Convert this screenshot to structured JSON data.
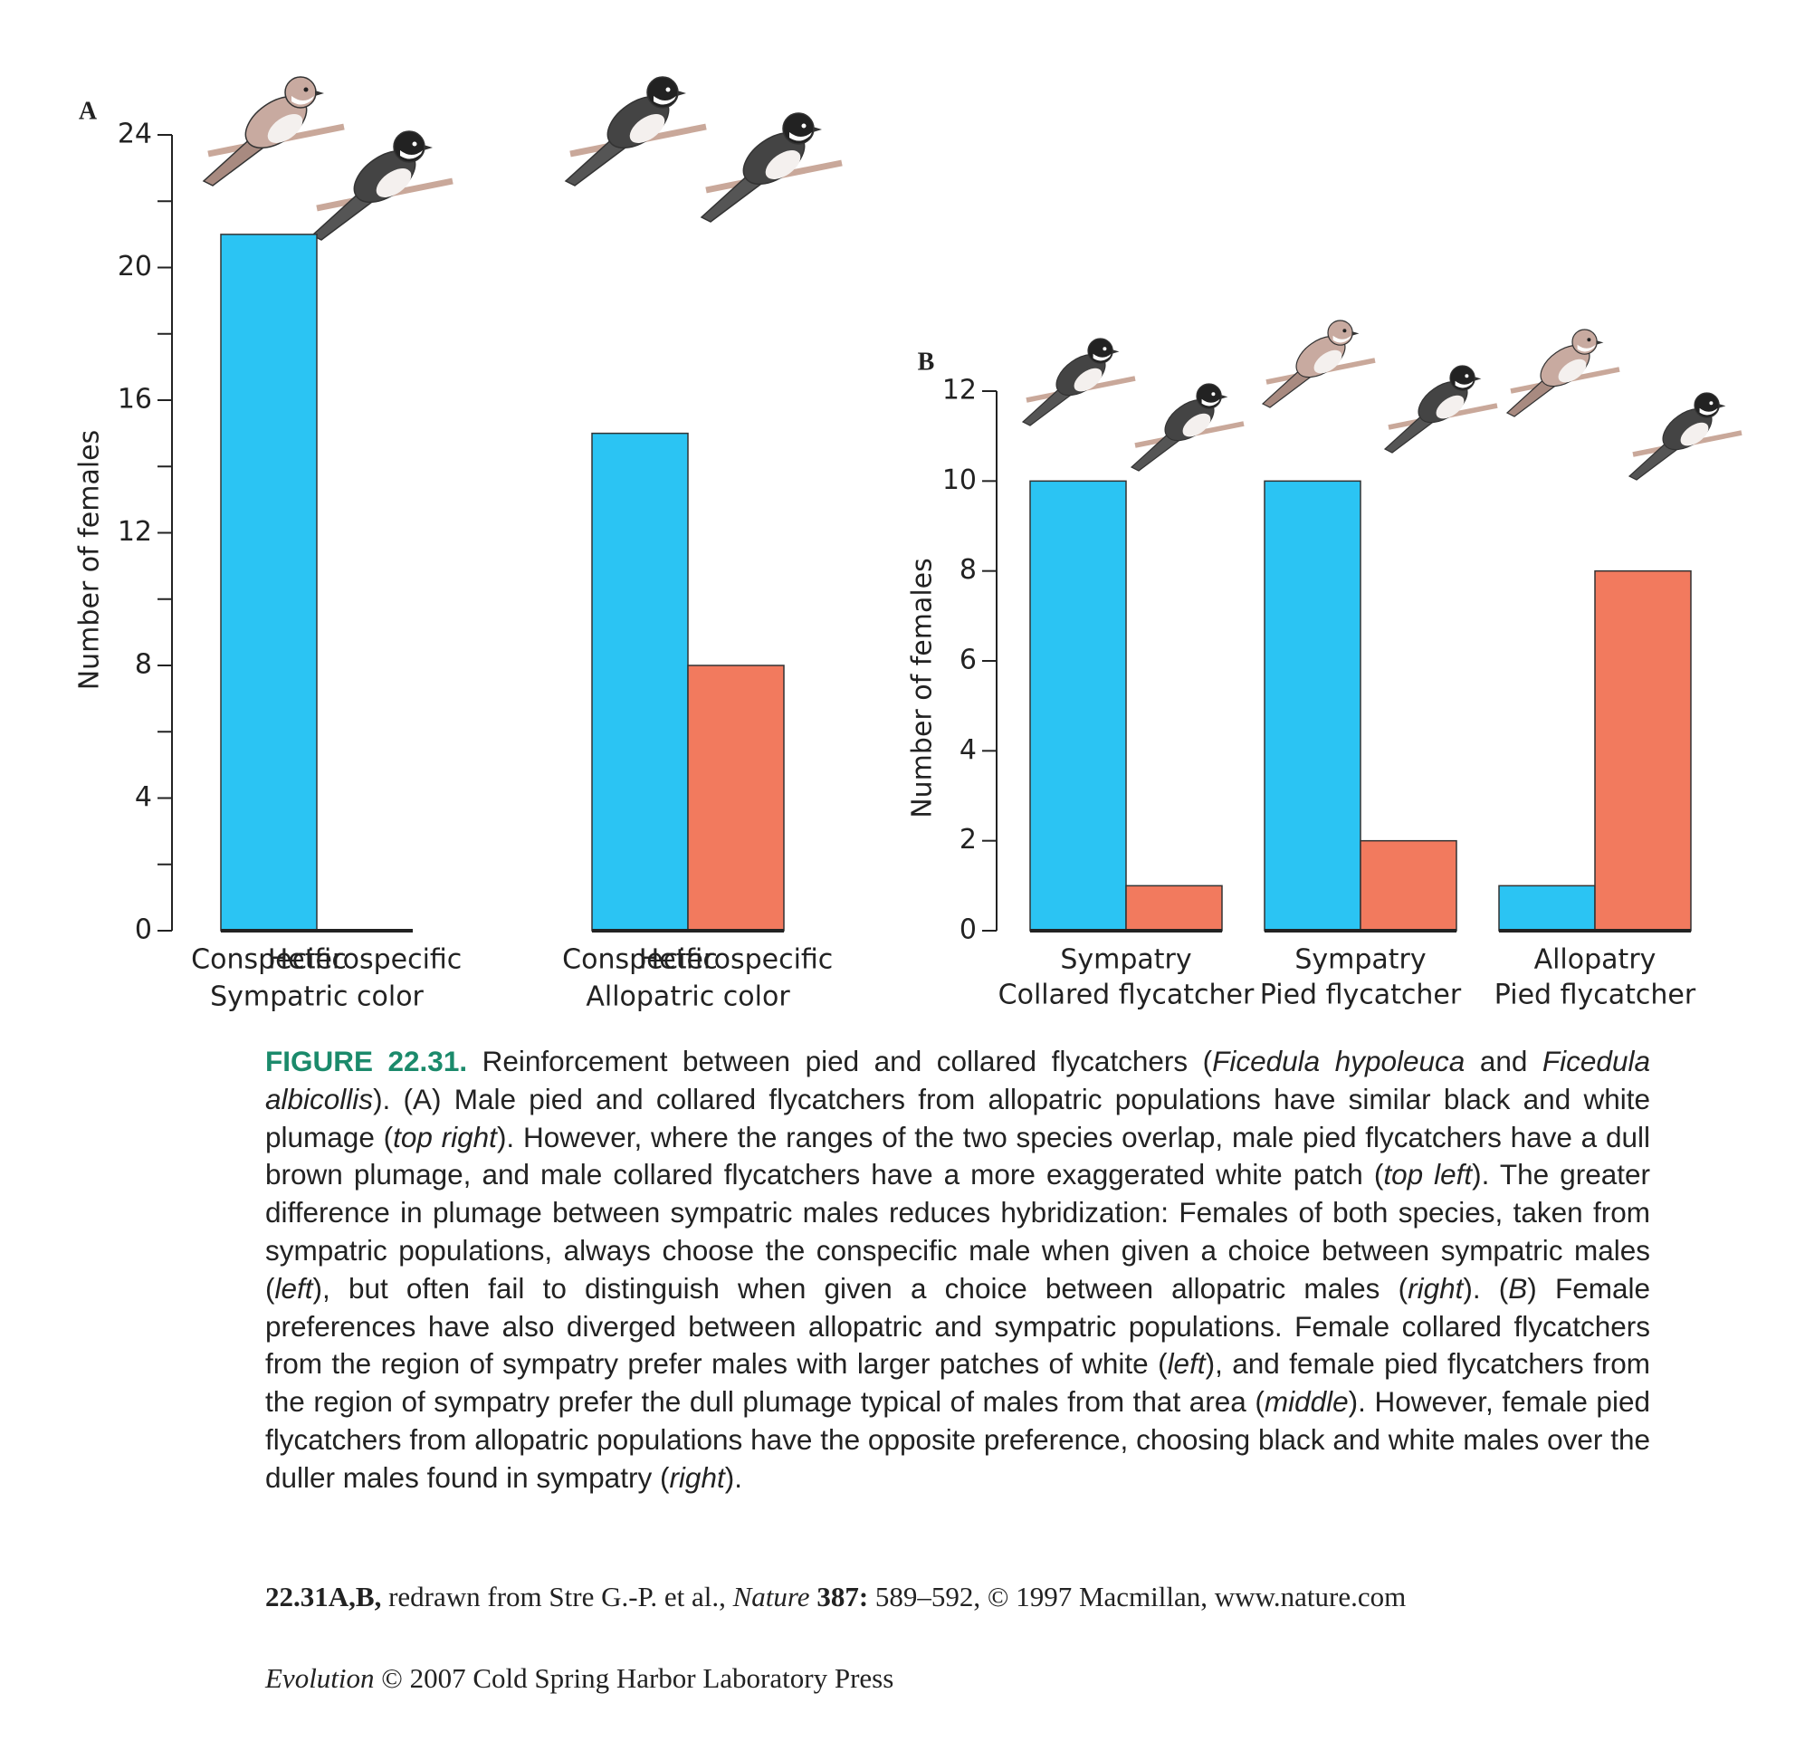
{
  "chart_data": [
    {
      "type": "bar",
      "panel_label": "A",
      "y_label": "Number of females",
      "groups": [
        "Sympatric color",
        "Allopatric color"
      ],
      "series": [
        {
          "name": "Conspecific",
          "color": "#2bc4f3",
          "values": [
            21,
            15
          ]
        },
        {
          "name": "Heterospecific",
          "color": "#f27a5e",
          "values": [
            0,
            8
          ]
        }
      ],
      "ylim": [
        0,
        24
      ],
      "yticks": [
        0,
        4,
        8,
        12,
        16,
        20,
        24
      ],
      "yminorticks": [
        2,
        6,
        10,
        14,
        18,
        22
      ]
    },
    {
      "type": "bar",
      "panel_label": "B",
      "y_label": "Number of females",
      "categories": [
        [
          "Sympatry",
          "Collared flycatcher"
        ],
        [
          "Sympatry",
          "Pied flycatcher"
        ],
        [
          "Allopatry",
          "Pied flycatcher"
        ]
      ],
      "series": [
        {
          "color": "#2bc4f3",
          "values": [
            10,
            10,
            1
          ]
        },
        {
          "color": "#f27a5e",
          "values": [
            1,
            2,
            8
          ]
        }
      ],
      "ylim": [
        0,
        12
      ],
      "yticks": [
        0,
        2,
        4,
        6,
        8,
        10,
        12
      ]
    }
  ],
  "caption": [
    {
      "text": "FIGURE 22.31.",
      "bold": true,
      "color": "#1b8a6b"
    },
    {
      "text": " Reinforcement between pied and collared flycatchers ("
    },
    {
      "text": "Ficedula hypoleuca",
      "italic": true
    },
    {
      "text": " and "
    },
    {
      "text": "Ficedula albicollis",
      "italic": true
    },
    {
      "text": "). (A) Male pied and collared flycatchers from allopatric populations have similar black and white plumage ("
    },
    {
      "text": "top right",
      "italic": true
    },
    {
      "text": "). However, where the ranges of the two species overlap, male pied flycatchers have a dull brown plumage, and male collared flycatchers have a more exaggerated white patch ("
    },
    {
      "text": "top left",
      "italic": true
    },
    {
      "text": "). The greater difference in plumage between sympatric males reduces hybridization: Females of both species, taken from sympatric populations, always choose the conspecific male when given a choice between sympatric males ("
    },
    {
      "text": "left",
      "italic": true
    },
    {
      "text": "), but often fail to distinguish when given a choice between allopatric males ("
    },
    {
      "text": "right",
      "italic": true
    },
    {
      "text": "). ("
    },
    {
      "text": "B",
      "italic": true
    },
    {
      "text": ") Female preferences have also diverged between allopatric and sympatric populations. Female collared flycatchers from the region of sympatry prefer males with larger patches of white ("
    },
    {
      "text": "left",
      "italic": true
    },
    {
      "text": "), and female pied flycatchers from the region of sympatry prefer the dull plumage typical of males from that area ("
    },
    {
      "text": "middle",
      "italic": true
    },
    {
      "text": "). However, female pied flycatchers from allopatric populations have the opposite preference, choosing black and white males over the duller males found in sympatry ("
    },
    {
      "text": "right",
      "italic": true
    },
    {
      "text": ")."
    }
  ],
  "credit": [
    {
      "text": "22.31A,B,",
      "bold": true
    },
    {
      "text": " redrawn from Stre G.-P. et al., "
    },
    {
      "text": "Nature",
      "italic": true
    },
    {
      "text": " "
    },
    {
      "text": "387:",
      "bold": true
    },
    {
      "text": " 589–592, © 1997 Macmillan, www.nature.com"
    }
  ],
  "footer": [
    {
      "text": "Evolution",
      "italic": true
    },
    {
      "text": " © 2007 Cold Spring Harbor Laboratory Press"
    }
  ]
}
